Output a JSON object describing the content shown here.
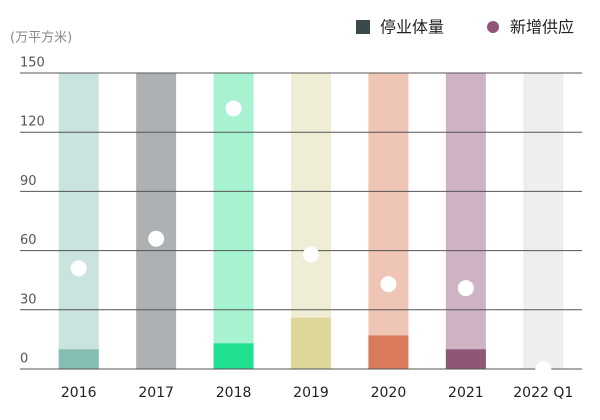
{
  "chart_data": {
    "type": "bar",
    "unit_label": "(万平方米)",
    "categories": [
      "2016",
      "2017",
      "2018",
      "2019",
      "2020",
      "2021",
      "2022 Q1"
    ],
    "background_colors": [
      "#c9e3df",
      "#aeb1b4",
      "#a6f2d1",
      "#efedd5",
      "#efc5b5",
      "#cdb3c4",
      "#eeeeee"
    ],
    "series": [
      {
        "name": "停业体量",
        "color": "#3a4a4a",
        "values": [
          10,
          0,
          13,
          26,
          17,
          10,
          0
        ],
        "colors": [
          "#86bdb3",
          "#9a9ea1",
          "#1fe08f",
          "#ddd799",
          "#d97a5c",
          "#8e5677",
          "#dcdcdc"
        ]
      },
      {
        "name": "新增供应",
        "type": "scatter",
        "color": "#8e5677",
        "marker_color": "#ffffff",
        "values": [
          51,
          66,
          132,
          58,
          43,
          41,
          0
        ]
      }
    ],
    "ylim": [
      0,
      150
    ],
    "yticks": [
      0,
      30,
      60,
      90,
      120,
      150
    ],
    "grid": true
  }
}
